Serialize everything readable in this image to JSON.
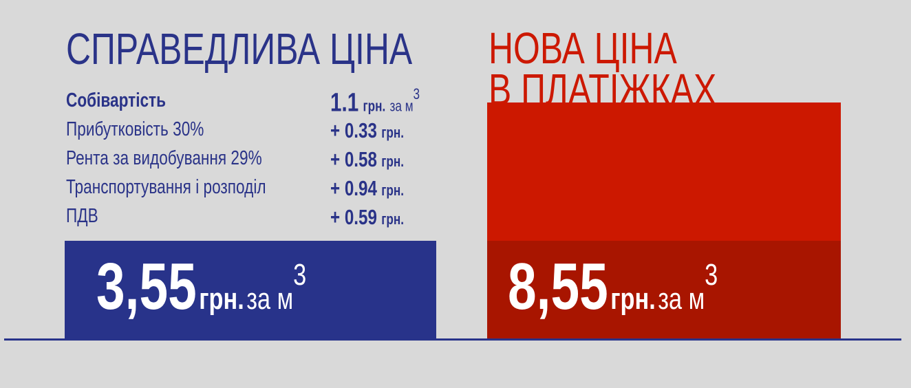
{
  "left": {
    "title": "СПРАВЕДЛИВА ЦІНА",
    "breakdown": [
      {
        "label": "Собівартість",
        "value": "1.1",
        "unit": "грн.",
        "per": "за м",
        "sup": "3"
      },
      {
        "label": "Прибутковість 30%",
        "value": "+ 0.33",
        "unit": "грн."
      },
      {
        "label": "Рента за видобування 29%",
        "value": "+ 0.58",
        "unit": "грн."
      },
      {
        "label": "Транспортування і розподіл",
        "value": "+ 0.94",
        "unit": "грн."
      },
      {
        "label": "ПДВ",
        "value": "+ 0.59",
        "unit": "грн."
      }
    ],
    "total": {
      "value": "3,55",
      "unit": "грн.",
      "per": "за м",
      "sup": "3"
    }
  },
  "right": {
    "title_line1": "НОВА ЦІНА",
    "title_line2": "В ПЛАТІЖКАХ",
    "total": {
      "value": "8,55",
      "unit": "грн.",
      "per": "за м",
      "sup": "3"
    }
  },
  "chart_data": {
    "type": "bar",
    "categories": [
      "СПРАВЕДЛИВА ЦІНА",
      "НОВА ЦІНА В ПЛАТІЖКАХ"
    ],
    "values": [
      3.55,
      8.55
    ],
    "colors": [
      "#28338a",
      "#cc1800"
    ],
    "grid": false
  }
}
